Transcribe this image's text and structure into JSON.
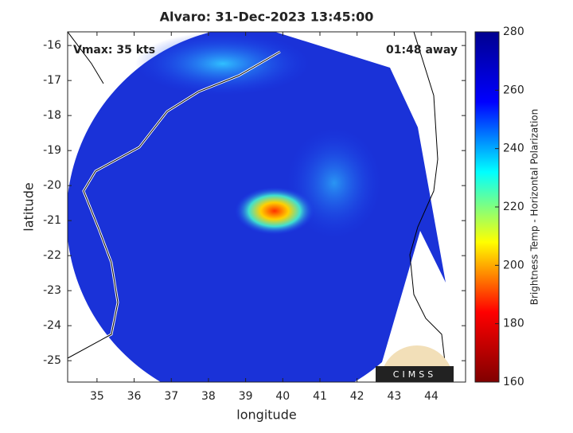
{
  "chart_data": {
    "type": "map",
    "title": "Alvaro: 31-Dec-2023 13:45:00",
    "annotations": [
      "Vmax: 35 kts",
      "01:48 away"
    ],
    "xlabel": "longitude",
    "ylabel": "latitude",
    "xlim": [
      34.21,
      44.92
    ],
    "xticks": [
      35,
      36,
      37,
      38,
      39,
      40,
      41,
      42,
      43,
      44
    ],
    "ylim": [
      -25.61,
      -15.61
    ],
    "yticks": [
      -25,
      -24,
      -23,
      -22,
      -21,
      -20,
      -19,
      -18,
      -17,
      -16
    ],
    "colorbar": {
      "label": "Brightness Temp - Horizontal Polarization",
      "clim": [
        160,
        280
      ],
      "ticks": [
        160,
        180,
        200,
        220,
        240,
        260,
        280
      ],
      "colormap": [
        "#800000",
        "#ff0000",
        "#ffff00",
        "#00ffff",
        "#0000ff",
        "#00008f"
      ]
    },
    "logo": "CIMSS"
  }
}
